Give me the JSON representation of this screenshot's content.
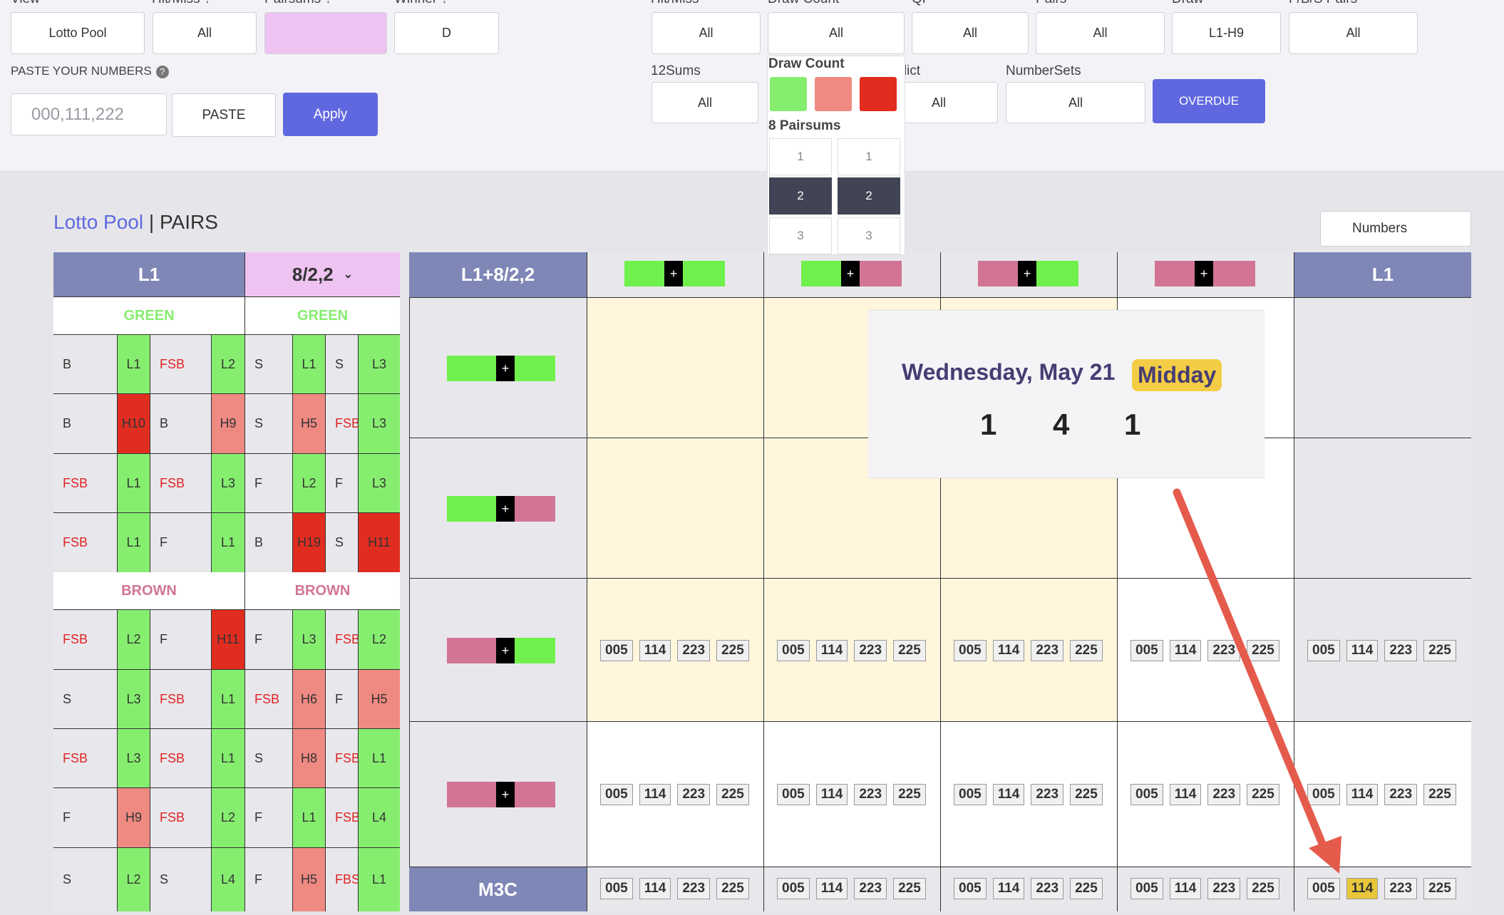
{
  "filters_left": {
    "view": {
      "label": "View",
      "value": "Lotto Pool"
    },
    "hitmiss": {
      "label": "Hit/Miss ?",
      "value": "All"
    },
    "pairsums": {
      "label": "Pairsums ?",
      "value": ""
    },
    "winner": {
      "label": "Winner ?",
      "value": "D"
    }
  },
  "paste": {
    "label": "PASTE YOUR NUMBERS",
    "placeholder": "000,111,222",
    "paste_button": "PASTE",
    "apply_button": "Apply"
  },
  "filters_right": {
    "hitmiss": {
      "label": "Hit/Miss",
      "value": "All"
    },
    "draw_count": {
      "label": "Draw Count",
      "value": "All"
    },
    "qp": {
      "label": "QP",
      "value": "All"
    },
    "pairs": {
      "label": "Pairs",
      "value": "All"
    },
    "draw": {
      "label": "Draw",
      "value": "L1-H9"
    },
    "fbs_pairs": {
      "label": "F/B/S Pairs",
      "value": "All"
    },
    "sums12": {
      "label": "12Sums",
      "value": "All"
    },
    "predict": {
      "label": "Predict",
      "value": "All"
    },
    "numbersets": {
      "label": "NumberSets",
      "value": "All"
    },
    "overdue_button": "OVERDUE"
  },
  "dropdown": {
    "draw_count_title": "Draw Count",
    "swatch_colors": [
      "#86ee6f",
      "#ef8a82",
      "#e12d20"
    ],
    "pairsums_title": "8 Pairsums",
    "options_col1": [
      "1",
      "2",
      "3"
    ],
    "options_col2": [
      "1",
      "2",
      "3"
    ],
    "selected": "2"
  },
  "title": {
    "pool": "Lotto Pool",
    "rest": "| PAIRS"
  },
  "numbers_select": "Numbers",
  "left_table": {
    "header_left": "L1",
    "header_right": "8/2,2",
    "section_green": "GREEN",
    "section_brown": "BROWN",
    "green_rows": [
      [
        [
          "B",
          "t"
        ],
        [
          "L1",
          "g"
        ],
        [
          "FSB",
          "r"
        ],
        [
          "L2",
          "g"
        ],
        [
          "S",
          "t"
        ],
        [
          "L1",
          "g"
        ],
        [
          "S",
          "t"
        ],
        [
          "L3",
          "g"
        ]
      ],
      [
        [
          "B",
          "t"
        ],
        [
          "H10",
          "d"
        ],
        [
          "B",
          "t"
        ],
        [
          "H9",
          "p"
        ],
        [
          "S",
          "t"
        ],
        [
          "H5",
          "p"
        ],
        [
          "FSB",
          "r"
        ],
        [
          "L3",
          "g"
        ]
      ],
      [
        [
          "FSB",
          "r"
        ],
        [
          "L1",
          "g"
        ],
        [
          "FSB",
          "r"
        ],
        [
          "L3",
          "g"
        ],
        [
          "F",
          "t"
        ],
        [
          "L2",
          "g"
        ],
        [
          "F",
          "t"
        ],
        [
          "L3",
          "g"
        ]
      ],
      [
        [
          "FSB",
          "r"
        ],
        [
          "L1",
          "g"
        ],
        [
          "F",
          "t"
        ],
        [
          "L1",
          "g"
        ],
        [
          "B",
          "t"
        ],
        [
          "H19",
          "d"
        ],
        [
          "S",
          "t"
        ],
        [
          "H11",
          "d"
        ]
      ]
    ],
    "brown_rows": [
      [
        [
          "FSB",
          "r"
        ],
        [
          "L2",
          "g"
        ],
        [
          "F",
          "t"
        ],
        [
          "H11",
          "d"
        ],
        [
          "F",
          "t"
        ],
        [
          "L3",
          "g"
        ],
        [
          "FSB",
          "r"
        ],
        [
          "L2",
          "g"
        ]
      ],
      [
        [
          "S",
          "t"
        ],
        [
          "L3",
          "g"
        ],
        [
          "FSB",
          "r"
        ],
        [
          "L1",
          "g"
        ],
        [
          "FSB",
          "r"
        ],
        [
          "H6",
          "p"
        ],
        [
          "F",
          "t"
        ],
        [
          "H5",
          "p"
        ]
      ],
      [
        [
          "FSB",
          "r"
        ],
        [
          "L3",
          "g"
        ],
        [
          "FSB",
          "r"
        ],
        [
          "L1",
          "g"
        ],
        [
          "S",
          "t"
        ],
        [
          "H8",
          "p"
        ],
        [
          "FSB",
          "r"
        ],
        [
          "L1",
          "g"
        ]
      ],
      [
        [
          "F",
          "t"
        ],
        [
          "H9",
          "p"
        ],
        [
          "FSB",
          "r"
        ],
        [
          "L2",
          "g"
        ],
        [
          "F",
          "t"
        ],
        [
          "L1",
          "g"
        ],
        [
          "FSB",
          "r"
        ],
        [
          "L4",
          "g"
        ]
      ],
      [
        [
          "S",
          "t"
        ],
        [
          "L2",
          "g"
        ],
        [
          "S",
          "t"
        ],
        [
          "L4",
          "g"
        ],
        [
          "F",
          "t"
        ],
        [
          "H5",
          "p"
        ],
        [
          "FBS",
          "r"
        ],
        [
          "L1",
          "g"
        ]
      ]
    ]
  },
  "main_grid": {
    "corner": "L1+8/2,2",
    "last_header": "L1",
    "footer_label": "M3C",
    "chips": [
      "005",
      "114",
      "223",
      "225"
    ],
    "highlight_chip": "114"
  },
  "popup": {
    "date": "Wednesday, May 21",
    "session": "Midday",
    "digits": [
      "1",
      "4",
      "1"
    ]
  },
  "colors": {
    "accent": "#6068e0",
    "header": "#7f87b7",
    "pink_header": "#eec3f2",
    "yellow_cell": "#fff6dc",
    "arrow": "#e45b4c"
  }
}
